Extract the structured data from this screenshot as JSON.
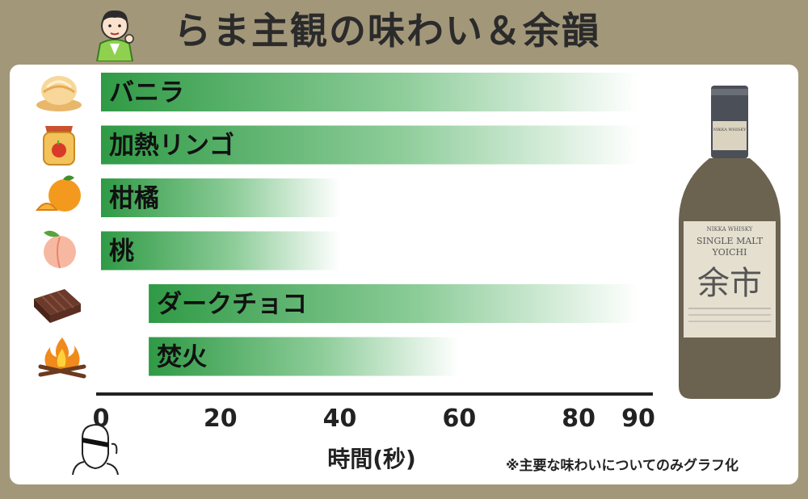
{
  "title": "らま主観の味わい＆余韻",
  "note": "※主要な味わいについてのみグラフ化",
  "colors": {
    "bar_start": "#2f9a45",
    "bar_end": "#ffffff",
    "background": "#a3977a"
  },
  "bottle": {
    "brand": "NIKKA WHISKY",
    "line1": "SINGLE MALT",
    "line2": "YOICHI",
    "kanji": "余市"
  },
  "chart_data": {
    "type": "bar",
    "orientation": "horizontal",
    "xlabel": "時間(秒)",
    "xlim": [
      0,
      90
    ],
    "xticks": [
      0,
      20,
      40,
      60,
      80,
      90
    ],
    "grid": false,
    "bars": [
      {
        "label": "バニラ",
        "start": 0,
        "end": 90,
        "icon": "vanilla-ice-cream-icon"
      },
      {
        "label": "加熱リンゴ",
        "start": 0,
        "end": 90,
        "icon": "apple-jam-jar-icon"
      },
      {
        "label": "柑橘",
        "start": 0,
        "end": 40,
        "icon": "orange-icon"
      },
      {
        "label": "桃",
        "start": 0,
        "end": 40,
        "icon": "peach-icon"
      },
      {
        "label": "ダークチョコ",
        "start": 8,
        "end": 90,
        "icon": "chocolate-icon"
      },
      {
        "label": "焚火",
        "start": 8,
        "end": 60,
        "icon": "bonfire-icon"
      }
    ]
  }
}
